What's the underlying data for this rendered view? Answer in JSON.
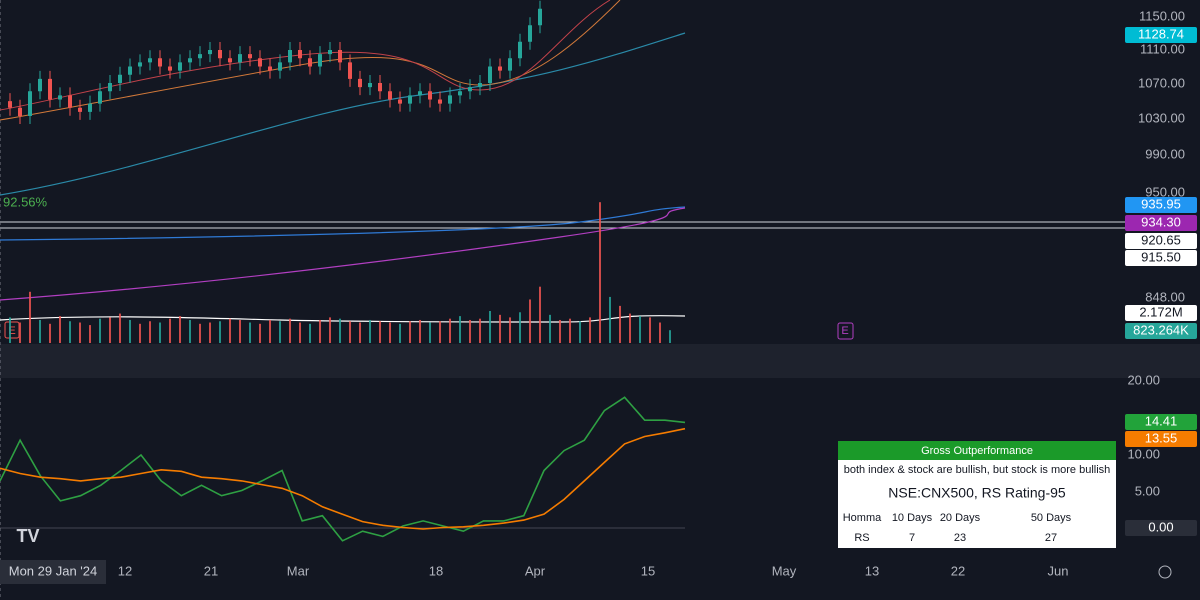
{
  "price_axis": {
    "ticks": [
      "1150.00",
      "1110.00",
      "1070.00",
      "1030.00",
      "990.00",
      "950.00",
      "848.00"
    ]
  },
  "badges": [
    {
      "label": "1128.74",
      "color": "#00bcd4"
    },
    {
      "label": "935.95",
      "color": "#2196f3"
    },
    {
      "label": "934.30",
      "color": "#9c27b0"
    },
    {
      "label": "920.65",
      "color": "#ffffff"
    },
    {
      "label": "915.50",
      "color": "#ffffff"
    },
    {
      "label": "2.172M",
      "color": "#ffffff"
    },
    {
      "label": "823.264K",
      "color": "#26a69a"
    },
    {
      "label": "14.41",
      "color": "#22a33a"
    },
    {
      "label": "13.55",
      "color": "#f57c00"
    },
    {
      "label": "0.00",
      "color": "#2a2e39"
    }
  ],
  "pct_label": "92.56%",
  "earnings": [
    "E",
    "E"
  ],
  "osc_axis": {
    "ticks": [
      "20.00",
      "10.00",
      "5.00"
    ]
  },
  "time_axis": {
    "cursor": "Mon 29 Jan '24",
    "labels": [
      "12",
      "21",
      "Mar",
      "18",
      "Apr",
      "15",
      "May",
      "13",
      "22",
      "Jun"
    ]
  },
  "table": {
    "title": "Gross Outperformance",
    "note": "both index & stock are bullish, but stock is more bullish",
    "heading": "NSE:CNX500, RS Rating-95",
    "header": [
      "Homma",
      "10 Days",
      "20 Days",
      "50 Days"
    ],
    "row": [
      "RS",
      "7",
      "23",
      "27"
    ]
  },
  "candles": {
    "closes": [
      1040,
      1030,
      1060,
      1075,
      1050,
      1055,
      1040,
      1035,
      1045,
      1060,
      1070,
      1080,
      1090,
      1095,
      1100,
      1090,
      1085,
      1095,
      1100,
      1105,
      1110,
      1100,
      1095,
      1105,
      1100,
      1090,
      1085,
      1095,
      1110,
      1100,
      1090,
      1105,
      1110,
      1095,
      1075,
      1065,
      1070,
      1060,
      1050,
      1045,
      1055,
      1060,
      1050,
      1045,
      1055,
      1060,
      1065,
      1070,
      1090,
      1085,
      1100,
      1120,
      1140,
      1160
    ]
  },
  "volumes": [
    2.0,
    1.6,
    4.0,
    1.8,
    1.5,
    2.1,
    1.7,
    1.6,
    1.4,
    1.9,
    2.0,
    2.3,
    1.8,
    1.5,
    1.7,
    1.6,
    1.9,
    2.1,
    1.8,
    1.5,
    1.6,
    1.7,
    1.9,
    1.8,
    1.6,
    1.5,
    1.8,
    1.7,
    1.9,
    1.6,
    1.5,
    1.8,
    2.0,
    1.9,
    1.7,
    1.6,
    1.8,
    1.7,
    1.6,
    1.5,
    1.7,
    1.8,
    1.6,
    1.7,
    1.9,
    2.1,
    1.8,
    1.9,
    2.5,
    2.2,
    2.0,
    2.4,
    3.4,
    4.4,
    2.2,
    1.8,
    1.9,
    1.7,
    2.0,
    11.0,
    3.6,
    2.9,
    2.3,
    2.1,
    2.0,
    1.6,
    1.0
  ],
  "oscillator": {
    "fast": [
      6.5,
      12,
      7.2,
      3.8,
      4.5,
      5.9,
      7.9,
      10,
      6.5,
      4.5,
      5.9,
      4.5,
      5.2,
      6.5,
      7.9,
      1.1,
      1.8,
      -1.6,
      -0.3,
      -1,
      0.4,
      1.1,
      0.4,
      -0.3,
      1.1,
      1.1,
      1.8,
      7.9,
      10.6,
      12,
      16,
      17.8,
      14.7,
      14.7,
      14.41
    ],
    "slow": [
      8.2,
      7.5,
      7,
      6.8,
      6.5,
      6.8,
      7,
      7.5,
      8,
      7.8,
      7,
      6.8,
      6.5,
      6,
      5.5,
      4.5,
      3,
      2,
      1,
      0.5,
      0.2,
      0,
      0.2,
      0.3,
      0.5,
      0.8,
      1.2,
      2,
      4,
      6.5,
      9,
      11.5,
      12.5,
      13,
      13.55
    ]
  }
}
